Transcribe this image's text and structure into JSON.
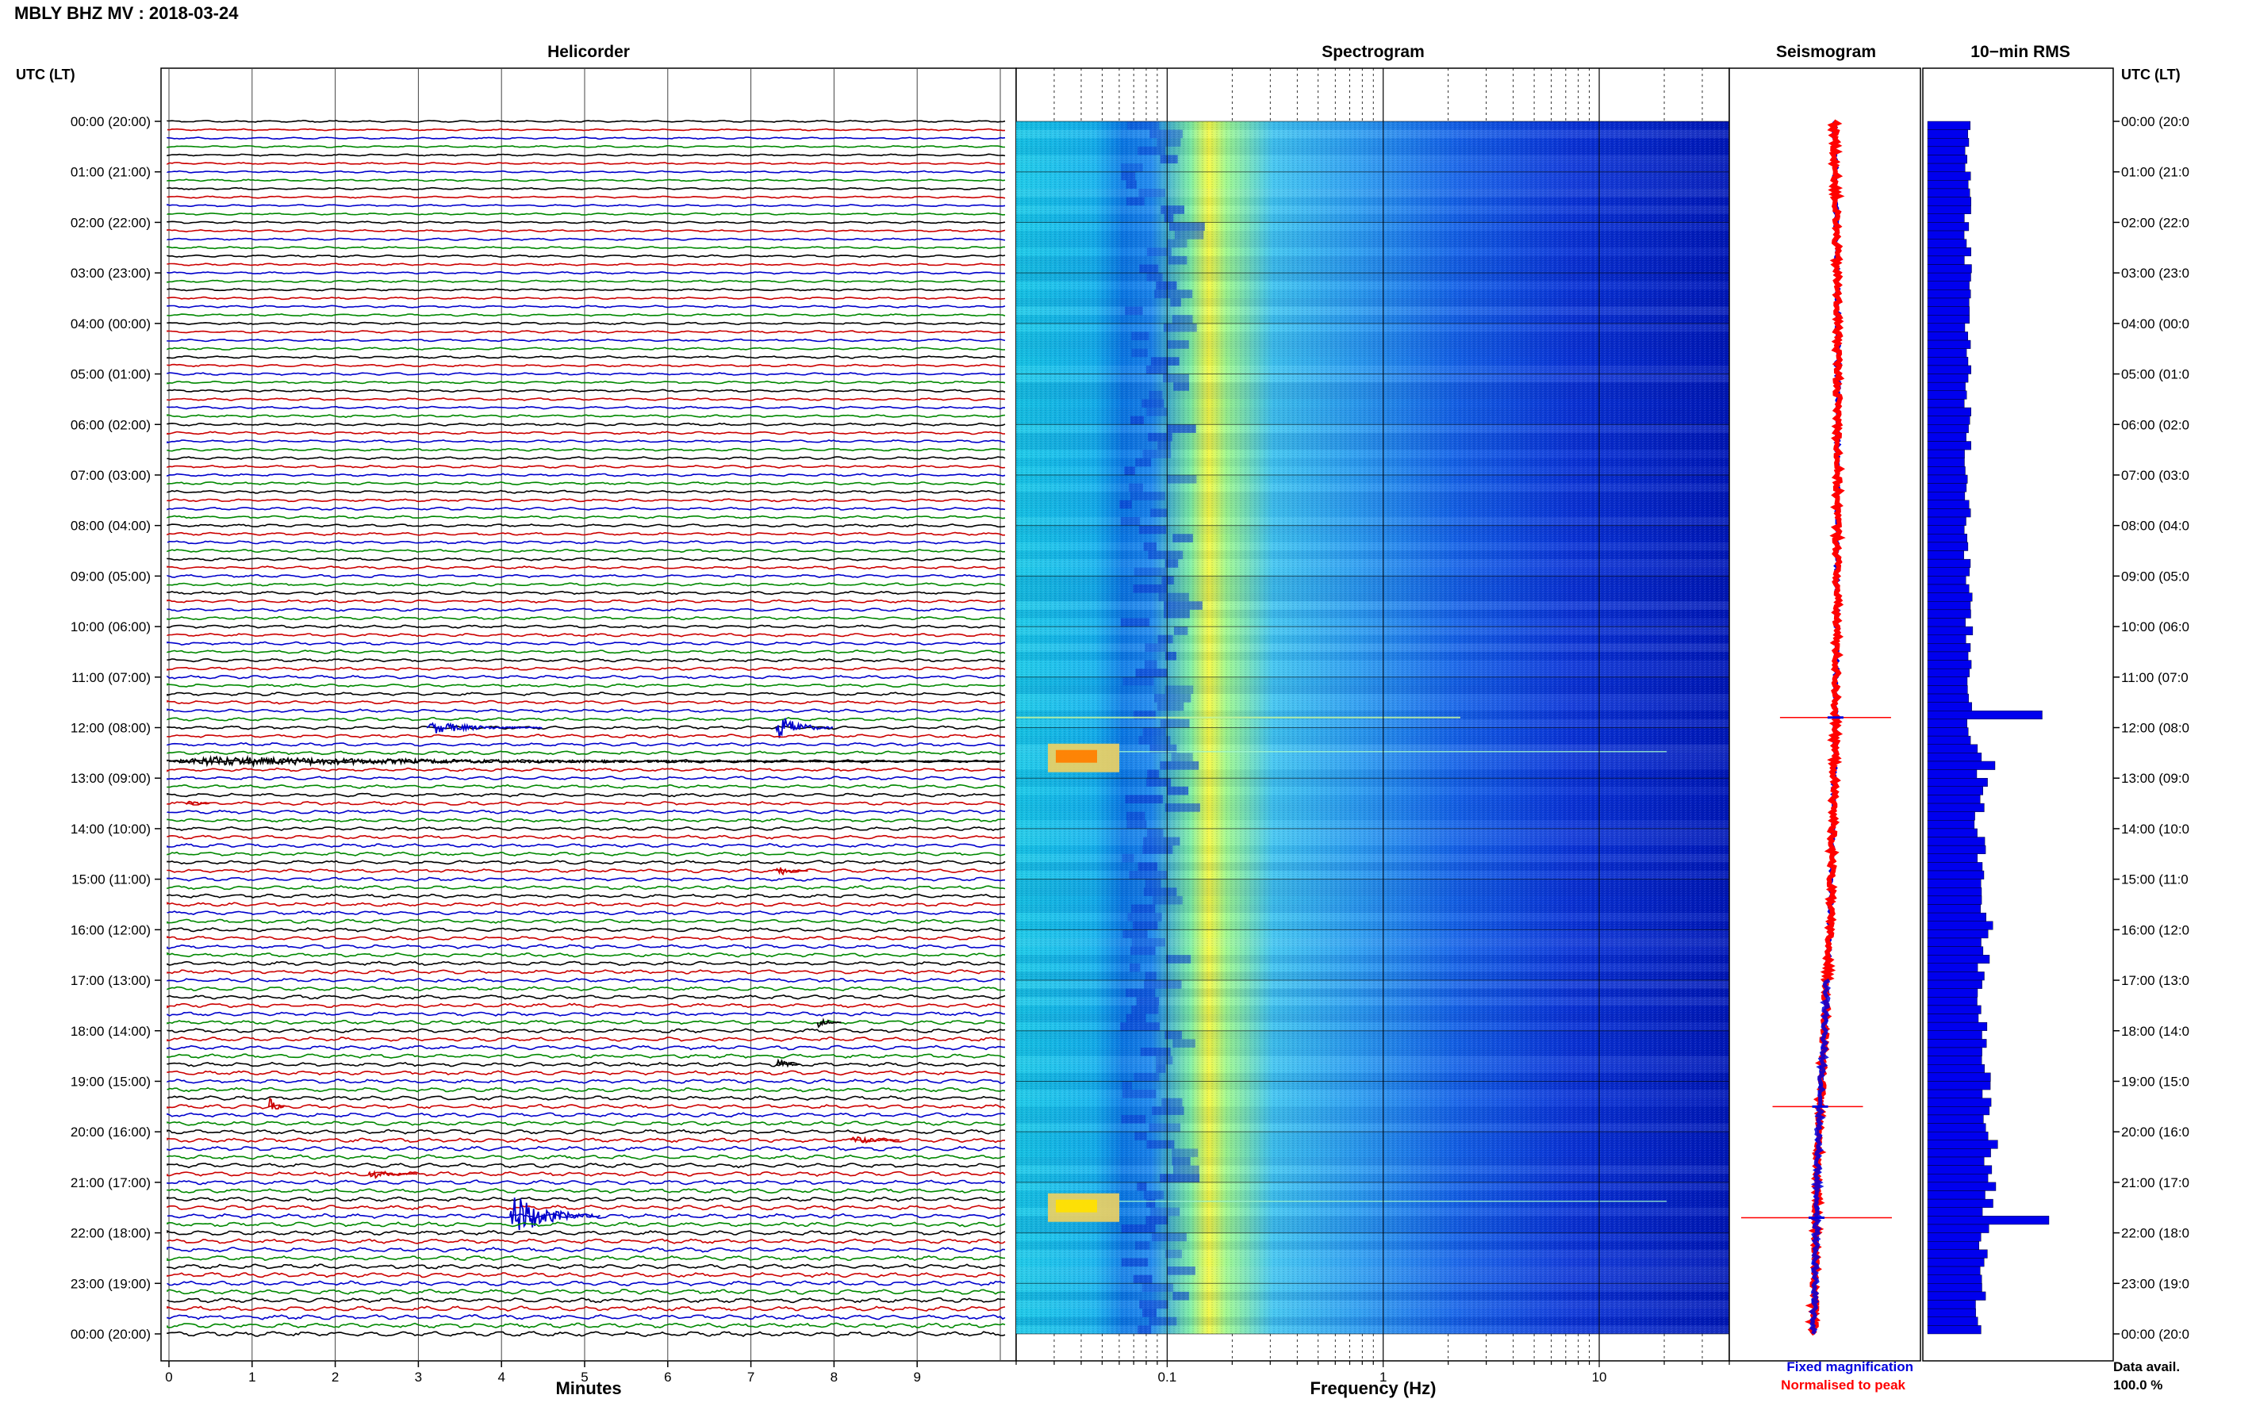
{
  "header": {
    "station_title": "MBLY BHZ MV : 2018-03-24",
    "left_axis_label": "UTC (LT)",
    "right_axis_label": "UTC (LT)"
  },
  "panels": {
    "helicorder": "Helicorder",
    "spectrogram": "Spectrogram",
    "seismogram": "Seismogram",
    "rms": "10−min RMS"
  },
  "time_labels": [
    "00:00 (20:00)",
    "01:00 (21:00)",
    "02:00 (22:00)",
    "03:00 (23:00)",
    "04:00 (00:00)",
    "05:00 (01:00)",
    "06:00 (02:00)",
    "07:00 (03:00)",
    "08:00 (04:00)",
    "09:00 (05:00)",
    "10:00 (06:00)",
    "11:00 (07:00)",
    "12:00 (08:00)",
    "13:00 (09:00)",
    "14:00 (10:00)",
    "15:00 (11:00)",
    "16:00 (12:00)",
    "17:00 (13:00)",
    "18:00 (14:00)",
    "19:00 (15:00)",
    "20:00 (16:00)",
    "21:00 (17:00)",
    "22:00 (18:00)",
    "23:00 (19:00)",
    "00:00 (20:00)"
  ],
  "right_time_labels": [
    "00:00 (20:0",
    "01:00 (21:0",
    "02:00 (22:0",
    "03:00 (23:0",
    "04:00 (00:0",
    "05:00 (01:0",
    "06:00 (02:0",
    "07:00 (03:0",
    "08:00 (04:0",
    "09:00 (05:0",
    "10:00 (06:0",
    "11:00 (07:0",
    "12:00 (08:0",
    "13:00 (09:0",
    "14:00 (10:0",
    "15:00 (11:0",
    "16:00 (12:0",
    "17:00 (13:0",
    "18:00 (14:0",
    "19:00 (15:0",
    "20:00 (16:0",
    "21:00 (17:0",
    "22:00 (18:0",
    "23:00 (19:0",
    "00:00 (20:0"
  ],
  "helicorder_axis": {
    "xlabel": "Minutes",
    "ticks": [
      "0",
      "1",
      "2",
      "3",
      "4",
      "5",
      "6",
      "7",
      "8",
      "9"
    ]
  },
  "spectrogram_axis": {
    "xlabel": "Frequency (Hz)",
    "ticks": [
      "0.1",
      "1",
      "10"
    ],
    "scale": "log"
  },
  "legend": {
    "fixed": "Fixed magnification",
    "normalised": "Normalised to peak",
    "fixed_color": "#0000dd",
    "normalised_color": "#ff0000"
  },
  "data_avail": {
    "label": "Data avail.",
    "value": "100.0 %"
  },
  "colors": {
    "trace_cycle": [
      "#000000",
      "#cc0000",
      "#0000cc",
      "#008800"
    ],
    "rms_bar": "#0000ee",
    "seismogram_normalised": "#ff0000",
    "seismogram_fixed": "#0000dd"
  },
  "chart_data": [
    {
      "type": "line",
      "title": "Helicorder",
      "xlabel": "Minutes",
      "ylabel": "UTC (LT)",
      "xlim": [
        0,
        10
      ],
      "rows_per_hour": 6,
      "row_count": 144,
      "events": [
        {
          "row": 72,
          "minute_start": 3.1,
          "minute_end": 4.5,
          "amp": 0.55,
          "color": "#0000cc"
        },
        {
          "row": 72,
          "minute_start": 7.3,
          "minute_end": 8.0,
          "amp": 1.2,
          "color": "#0000cc"
        },
        {
          "row": 76,
          "minute_start": 0.0,
          "minute_end": 10.0,
          "amp": 0.4,
          "color": "#000000"
        },
        {
          "row": 81,
          "minute_start": 0.2,
          "minute_end": 0.5,
          "amp": 0.5,
          "color": "#cc0000"
        },
        {
          "row": 89,
          "minute_start": 7.3,
          "minute_end": 7.7,
          "amp": 0.5,
          "color": "#cc0000"
        },
        {
          "row": 107,
          "minute_start": 7.8,
          "minute_end": 8.1,
          "amp": 0.5,
          "color": "#000000"
        },
        {
          "row": 112,
          "minute_start": 7.3,
          "minute_end": 7.6,
          "amp": 0.6,
          "color": "#000000"
        },
        {
          "row": 117,
          "minute_start": 1.2,
          "minute_end": 1.4,
          "amp": 1.0,
          "color": "#cc0000"
        },
        {
          "row": 121,
          "minute_start": 8.2,
          "minute_end": 8.8,
          "amp": 0.45,
          "color": "#cc0000"
        },
        {
          "row": 125,
          "minute_start": 2.4,
          "minute_end": 3.0,
          "amp": 0.45,
          "color": "#cc0000"
        },
        {
          "row": 130,
          "minute_start": 4.1,
          "minute_end": 5.2,
          "amp": 2.0,
          "color": "#0000cc"
        }
      ]
    },
    {
      "type": "heatmap",
      "title": "Spectrogram",
      "xlabel": "Frequency (Hz)",
      "xscale": "log",
      "xlim": [
        0.02,
        40
      ],
      "ylabel": "UTC (LT)",
      "peak_band_hz": [
        0.18,
        0.28
      ],
      "strong_events_hours": [
        12.6,
        21.5
      ],
      "colormap": [
        "#00008b",
        "#0000ff",
        "#0080ff",
        "#00d8e8",
        "#80ff80",
        "#ffff00",
        "#ff8000",
        "#ff0000"
      ]
    },
    {
      "type": "line",
      "title": "Seismogram",
      "series": [
        {
          "name": "Fixed magnification",
          "color": "#0000dd"
        },
        {
          "name": "Normalised to peak",
          "color": "#ff0000"
        }
      ],
      "drift_points_hours": [
        0,
        4,
        8,
        12,
        16,
        20,
        24
      ],
      "drift_offset": [
        0.0,
        -0.02,
        -0.05,
        -0.07,
        -0.09,
        -0.12,
        -0.11
      ],
      "spikes_hours": [
        11.8,
        19.5,
        21.7
      ]
    },
    {
      "type": "bar",
      "title": "10−min RMS",
      "orientation": "horizontal",
      "units": "relative",
      "baseline_hours": [
        0,
        2,
        4,
        6,
        8,
        10,
        11,
        12,
        13,
        14,
        15,
        16,
        17,
        18,
        19,
        20,
        21,
        22,
        23,
        24
      ],
      "baseline_values": [
        0.3,
        0.3,
        0.3,
        0.29,
        0.29,
        0.3,
        0.31,
        0.32,
        0.4,
        0.38,
        0.4,
        0.44,
        0.4,
        0.42,
        0.42,
        0.44,
        0.46,
        0.42,
        0.4,
        0.38
      ],
      "peaks": [
        {
          "hour": 11.8,
          "value": 0.85
        },
        {
          "hour": 12.7,
          "value": 0.5
        },
        {
          "hour": 20.2,
          "value": 0.52
        },
        {
          "hour": 21.7,
          "value": 0.9
        }
      ]
    }
  ]
}
